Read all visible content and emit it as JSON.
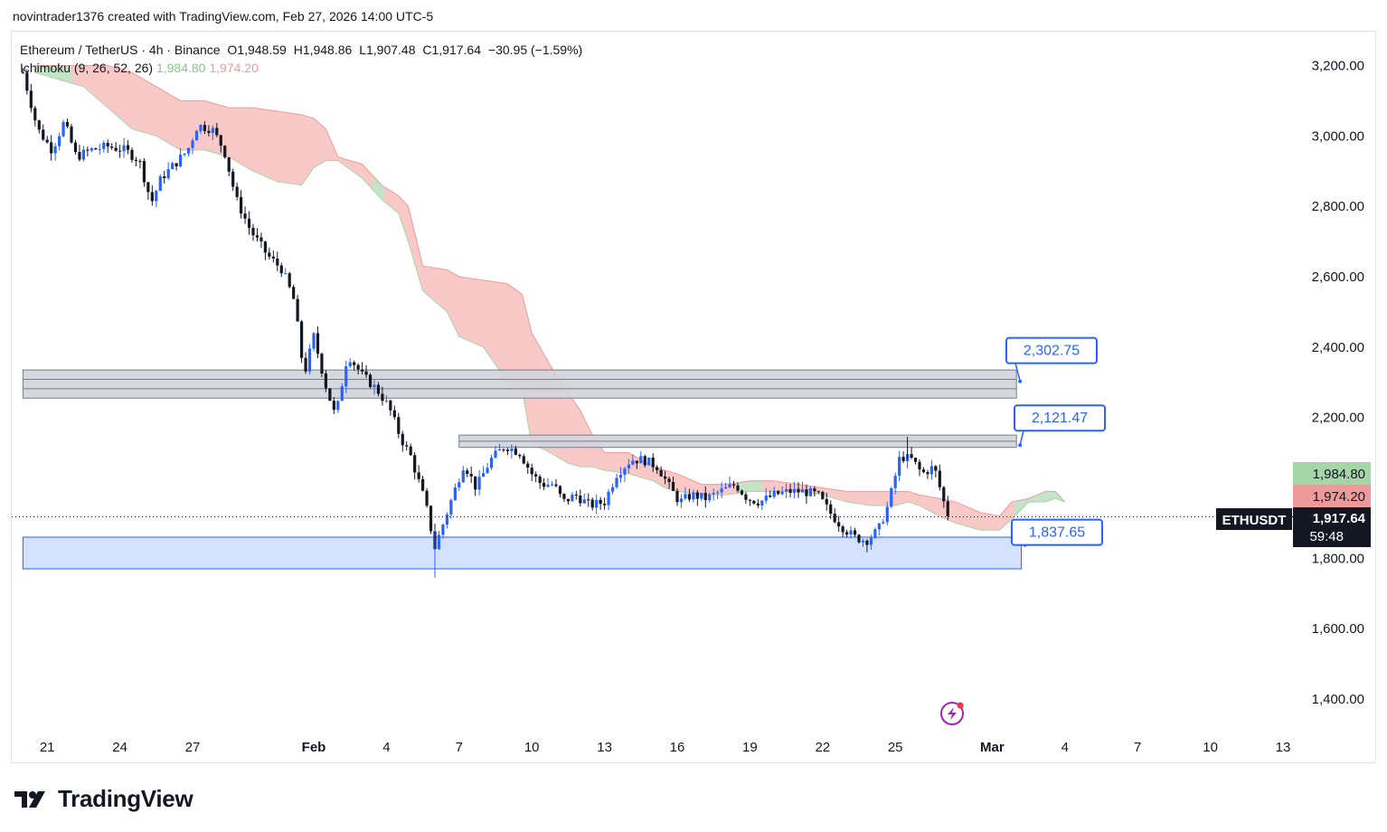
{
  "credit": "novintrader1376 created with TradingView.com, Feb 27, 2026 14:00 UTC-5",
  "legend": {
    "symbol": "Ethereum / TetherUS · 4h · Binance",
    "open": "O1,948.59",
    "high": "H1,948.86",
    "low": "L1,907.48",
    "close": "C1,917.64",
    "change": "−30.95 (−1.59%)",
    "indicator": "Ichimoku (9, 26, 52, 26)",
    "ind_val1": "1,984.80",
    "ind_val2": "1,974.20"
  },
  "brand": "TradingView",
  "colors": {
    "up": "#2962ff",
    "down": "#131722",
    "cloud_bear": "#f8c9c6",
    "cloud_bull": "#c5e3c6",
    "zone_gray": "#d1d4dc",
    "zone_blue": "#d3e0ff",
    "label_blue": "#2962ff",
    "badge_green": "#a5d6a7",
    "badge_red": "#ef9a9a"
  },
  "chart_data": {
    "type": "candlestick",
    "symbol": "ETHUSDT",
    "timeframe": "4h",
    "y_axis": {
      "min": 1300,
      "max": 3300,
      "ticks": [
        "1,400.00",
        "1,600.00",
        "1,800.00",
        "2,000.00",
        "2,200.00",
        "2,400.00",
        "2,600.00",
        "2,800.00",
        "3,000.00",
        "3,200.00"
      ],
      "tick_values": [
        1400,
        1600,
        1800,
        2000,
        2200,
        2400,
        2600,
        2800,
        3000,
        3200
      ]
    },
    "x_axis": {
      "labels": [
        "21",
        "24",
        "27",
        "Feb",
        "4",
        "7",
        "10",
        "13",
        "16",
        "19",
        "22",
        "25",
        "Mar",
        "4",
        "7",
        "10",
        "13"
      ],
      "label_days": [
        -11,
        -8,
        -5,
        0,
        3,
        6,
        9,
        12,
        15,
        18,
        21,
        24,
        28,
        31,
        34,
        37,
        40
      ]
    },
    "price": {
      "symbol": "ETHUSDT",
      "last": "1,917.64",
      "countdown": "59:48",
      "value": 1917.64
    },
    "ichimoku_badges": [
      {
        "label": "1,984.80",
        "value": 1984.8,
        "color": "green"
      },
      {
        "label": "1,974.20",
        "value": 1974.2,
        "color": "red"
      }
    ],
    "price_path": [
      [
        -12.0,
        3180
      ],
      [
        -11.4,
        3020
      ],
      [
        -10.8,
        2960
      ],
      [
        -10.3,
        3040
      ],
      [
        -9.8,
        2940
      ],
      [
        -9.2,
        2960
      ],
      [
        -8.5,
        2970
      ],
      [
        -7.8,
        2960
      ],
      [
        -7.2,
        2930
      ],
      [
        -6.7,
        2810
      ],
      [
        -6.3,
        2880
      ],
      [
        -5.6,
        2930
      ],
      [
        -5.2,
        2960
      ],
      [
        -4.8,
        3030
      ],
      [
        -4.2,
        3020
      ],
      [
        -3.7,
        2960
      ],
      [
        -3.2,
        2820
      ],
      [
        -2.6,
        2730
      ],
      [
        -1.9,
        2660
      ],
      [
        -1.3,
        2620
      ],
      [
        -0.8,
        2530
      ],
      [
        -0.4,
        2320
      ],
      [
        0.0,
        2430
      ],
      [
        0.5,
        2290
      ],
      [
        0.9,
        2200
      ],
      [
        1.4,
        2380
      ],
      [
        2.0,
        2320
      ],
      [
        2.6,
        2280
      ],
      [
        3.1,
        2230
      ],
      [
        3.6,
        2140
      ],
      [
        4.0,
        2090
      ],
      [
        4.6,
        1960
      ],
      [
        5.0,
        1830
      ],
      [
        5.4,
        1910
      ],
      [
        5.8,
        1990
      ],
      [
        6.2,
        2070
      ],
      [
        6.7,
        2000
      ],
      [
        7.3,
        2080
      ],
      [
        7.9,
        2120
      ],
      [
        8.5,
        2100
      ],
      [
        9.0,
        2040
      ],
      [
        9.4,
        2010
      ],
      [
        9.9,
        2010
      ],
      [
        10.3,
        1960
      ],
      [
        10.8,
        1980
      ],
      [
        11.4,
        1950
      ],
      [
        12.0,
        1960
      ],
      [
        12.5,
        2040
      ],
      [
        13.1,
        2080
      ],
      [
        13.6,
        2080
      ],
      [
        14.2,
        2060
      ],
      [
        14.7,
        2000
      ],
      [
        15.1,
        1960
      ],
      [
        15.6,
        1980
      ],
      [
        16.2,
        1970
      ],
      [
        16.8,
        1990
      ],
      [
        17.4,
        2010
      ],
      [
        17.9,
        1970
      ],
      [
        18.4,
        1960
      ],
      [
        19.0,
        1980
      ],
      [
        19.6,
        1990
      ],
      [
        20.2,
        1990
      ],
      [
        20.8,
        1980
      ],
      [
        21.3,
        1930
      ],
      [
        21.8,
        1890
      ],
      [
        22.3,
        1860
      ],
      [
        22.8,
        1850
      ],
      [
        23.3,
        1880
      ],
      [
        23.7,
        1950
      ],
      [
        24.2,
        2090
      ],
      [
        24.7,
        2080
      ],
      [
        25.1,
        2040
      ],
      [
        25.6,
        2060
      ],
      [
        26.0,
        1960
      ],
      [
        26.2,
        1918
      ]
    ],
    "ichimoku_cloud": {
      "upper": [
        [
          -11.5,
          3200
        ],
        [
          -9.5,
          3200
        ],
        [
          -8.5,
          3200
        ],
        [
          -7.5,
          3180
        ],
        [
          -6.5,
          3140
        ],
        [
          -5.5,
          3100
        ],
        [
          -4.5,
          3100
        ],
        [
          -3.5,
          3080
        ],
        [
          -2.5,
          3080
        ],
        [
          -1.5,
          3070
        ],
        [
          -0.5,
          3060
        ],
        [
          0.0,
          3050
        ],
        [
          0.5,
          3020
        ],
        [
          1.0,
          2940
        ],
        [
          2.0,
          2920
        ],
        [
          2.8,
          2860
        ],
        [
          3.5,
          2830
        ],
        [
          3.9,
          2800
        ],
        [
          4.5,
          2630
        ],
        [
          5.5,
          2620
        ],
        [
          6.0,
          2600
        ],
        [
          7.0,
          2590
        ],
        [
          8.0,
          2580
        ],
        [
          8.6,
          2550
        ],
        [
          9.0,
          2440
        ],
        [
          9.5,
          2380
        ],
        [
          10.0,
          2320
        ],
        [
          10.5,
          2270
        ],
        [
          11.0,
          2220
        ],
        [
          11.5,
          2150
        ],
        [
          12.0,
          2100
        ],
        [
          13.0,
          2100
        ],
        [
          14.0,
          2060
        ],
        [
          14.5,
          2050
        ],
        [
          15.0,
          2040
        ],
        [
          16.0,
          2010
        ],
        [
          17.0,
          2010
        ],
        [
          18.0,
          2020
        ],
        [
          19.0,
          2020
        ],
        [
          20.0,
          2010
        ],
        [
          21.0,
          2000
        ],
        [
          22.0,
          1990
        ],
        [
          23.0,
          1990
        ],
        [
          24.0,
          1990
        ],
        [
          24.5,
          1990
        ],
        [
          25.0,
          1980
        ],
        [
          25.8,
          1970
        ],
        [
          26.5,
          1960
        ],
        [
          27.5,
          1930
        ],
        [
          28.3,
          1920
        ],
        [
          28.8,
          1960
        ],
        [
          29.5,
          1970
        ],
        [
          30.2,
          1990
        ],
        [
          30.6,
          1990
        ],
        [
          31.0,
          1960
        ]
      ],
      "lower": [
        [
          -11.5,
          3180
        ],
        [
          -9.5,
          3140
        ],
        [
          -8.5,
          3080
        ],
        [
          -7.5,
          3020
        ],
        [
          -6.5,
          3000
        ],
        [
          -5.5,
          2960
        ],
        [
          -4.5,
          2960
        ],
        [
          -3.5,
          2940
        ],
        [
          -2.5,
          2900
        ],
        [
          -1.5,
          2870
        ],
        [
          -0.5,
          2860
        ],
        [
          0.0,
          2910
        ],
        [
          0.5,
          2930
        ],
        [
          1.0,
          2930
        ],
        [
          2.0,
          2880
        ],
        [
          2.8,
          2820
        ],
        [
          3.5,
          2780
        ],
        [
          3.9,
          2700
        ],
        [
          4.5,
          2560
        ],
        [
          5.5,
          2500
        ],
        [
          6.0,
          2430
        ],
        [
          7.0,
          2400
        ],
        [
          8.0,
          2300
        ],
        [
          8.6,
          2280
        ],
        [
          9.0,
          2120
        ],
        [
          9.5,
          2110
        ],
        [
          10.0,
          2090
        ],
        [
          10.5,
          2070
        ],
        [
          11.0,
          2060
        ],
        [
          11.5,
          2060
        ],
        [
          12.0,
          2050
        ],
        [
          13.0,
          2040
        ],
        [
          14.0,
          2020
        ],
        [
          14.5,
          2000
        ],
        [
          15.0,
          1990
        ],
        [
          16.0,
          1980
        ],
        [
          17.0,
          1980
        ],
        [
          18.0,
          1990
        ],
        [
          19.0,
          1990
        ],
        [
          20.0,
          1990
        ],
        [
          21.0,
          1980
        ],
        [
          22.0,
          1960
        ],
        [
          23.0,
          1950
        ],
        [
          24.0,
          1950
        ],
        [
          24.5,
          1960
        ],
        [
          25.0,
          1950
        ],
        [
          25.8,
          1920
        ],
        [
          26.5,
          1900
        ],
        [
          27.5,
          1880
        ],
        [
          28.3,
          1880
        ],
        [
          28.8,
          1910
        ],
        [
          29.5,
          1960
        ],
        [
          30.2,
          1960
        ],
        [
          30.6,
          1970
        ],
        [
          31.0,
          1960
        ]
      ],
      "bull_segments": [
        [
          -11.5,
          -10.0
        ],
        [
          2.4,
          2.9
        ],
        [
          17.5,
          18.5
        ],
        [
          28.9,
          31.0
        ]
      ]
    },
    "zones": [
      {
        "name": "upper-resistance",
        "top": 2335,
        "bottom": 2255,
        "x_start": -12.0,
        "x_end": 29.0,
        "color": "gray"
      },
      {
        "name": "mid-resistance",
        "top": 2150,
        "bottom": 2115,
        "x_start": 6.0,
        "x_end": 29.0,
        "color": "gray"
      },
      {
        "name": "support",
        "top": 1860,
        "bottom": 1770,
        "x_start": -12.0,
        "x_end": 29.2,
        "color": "blue"
      }
    ],
    "callouts": [
      {
        "label": "2,302.75",
        "value": 2302.75
      },
      {
        "label": "2,121.47",
        "value": 2121.47
      },
      {
        "label": "1,837.65",
        "value": 1837.65
      }
    ]
  }
}
